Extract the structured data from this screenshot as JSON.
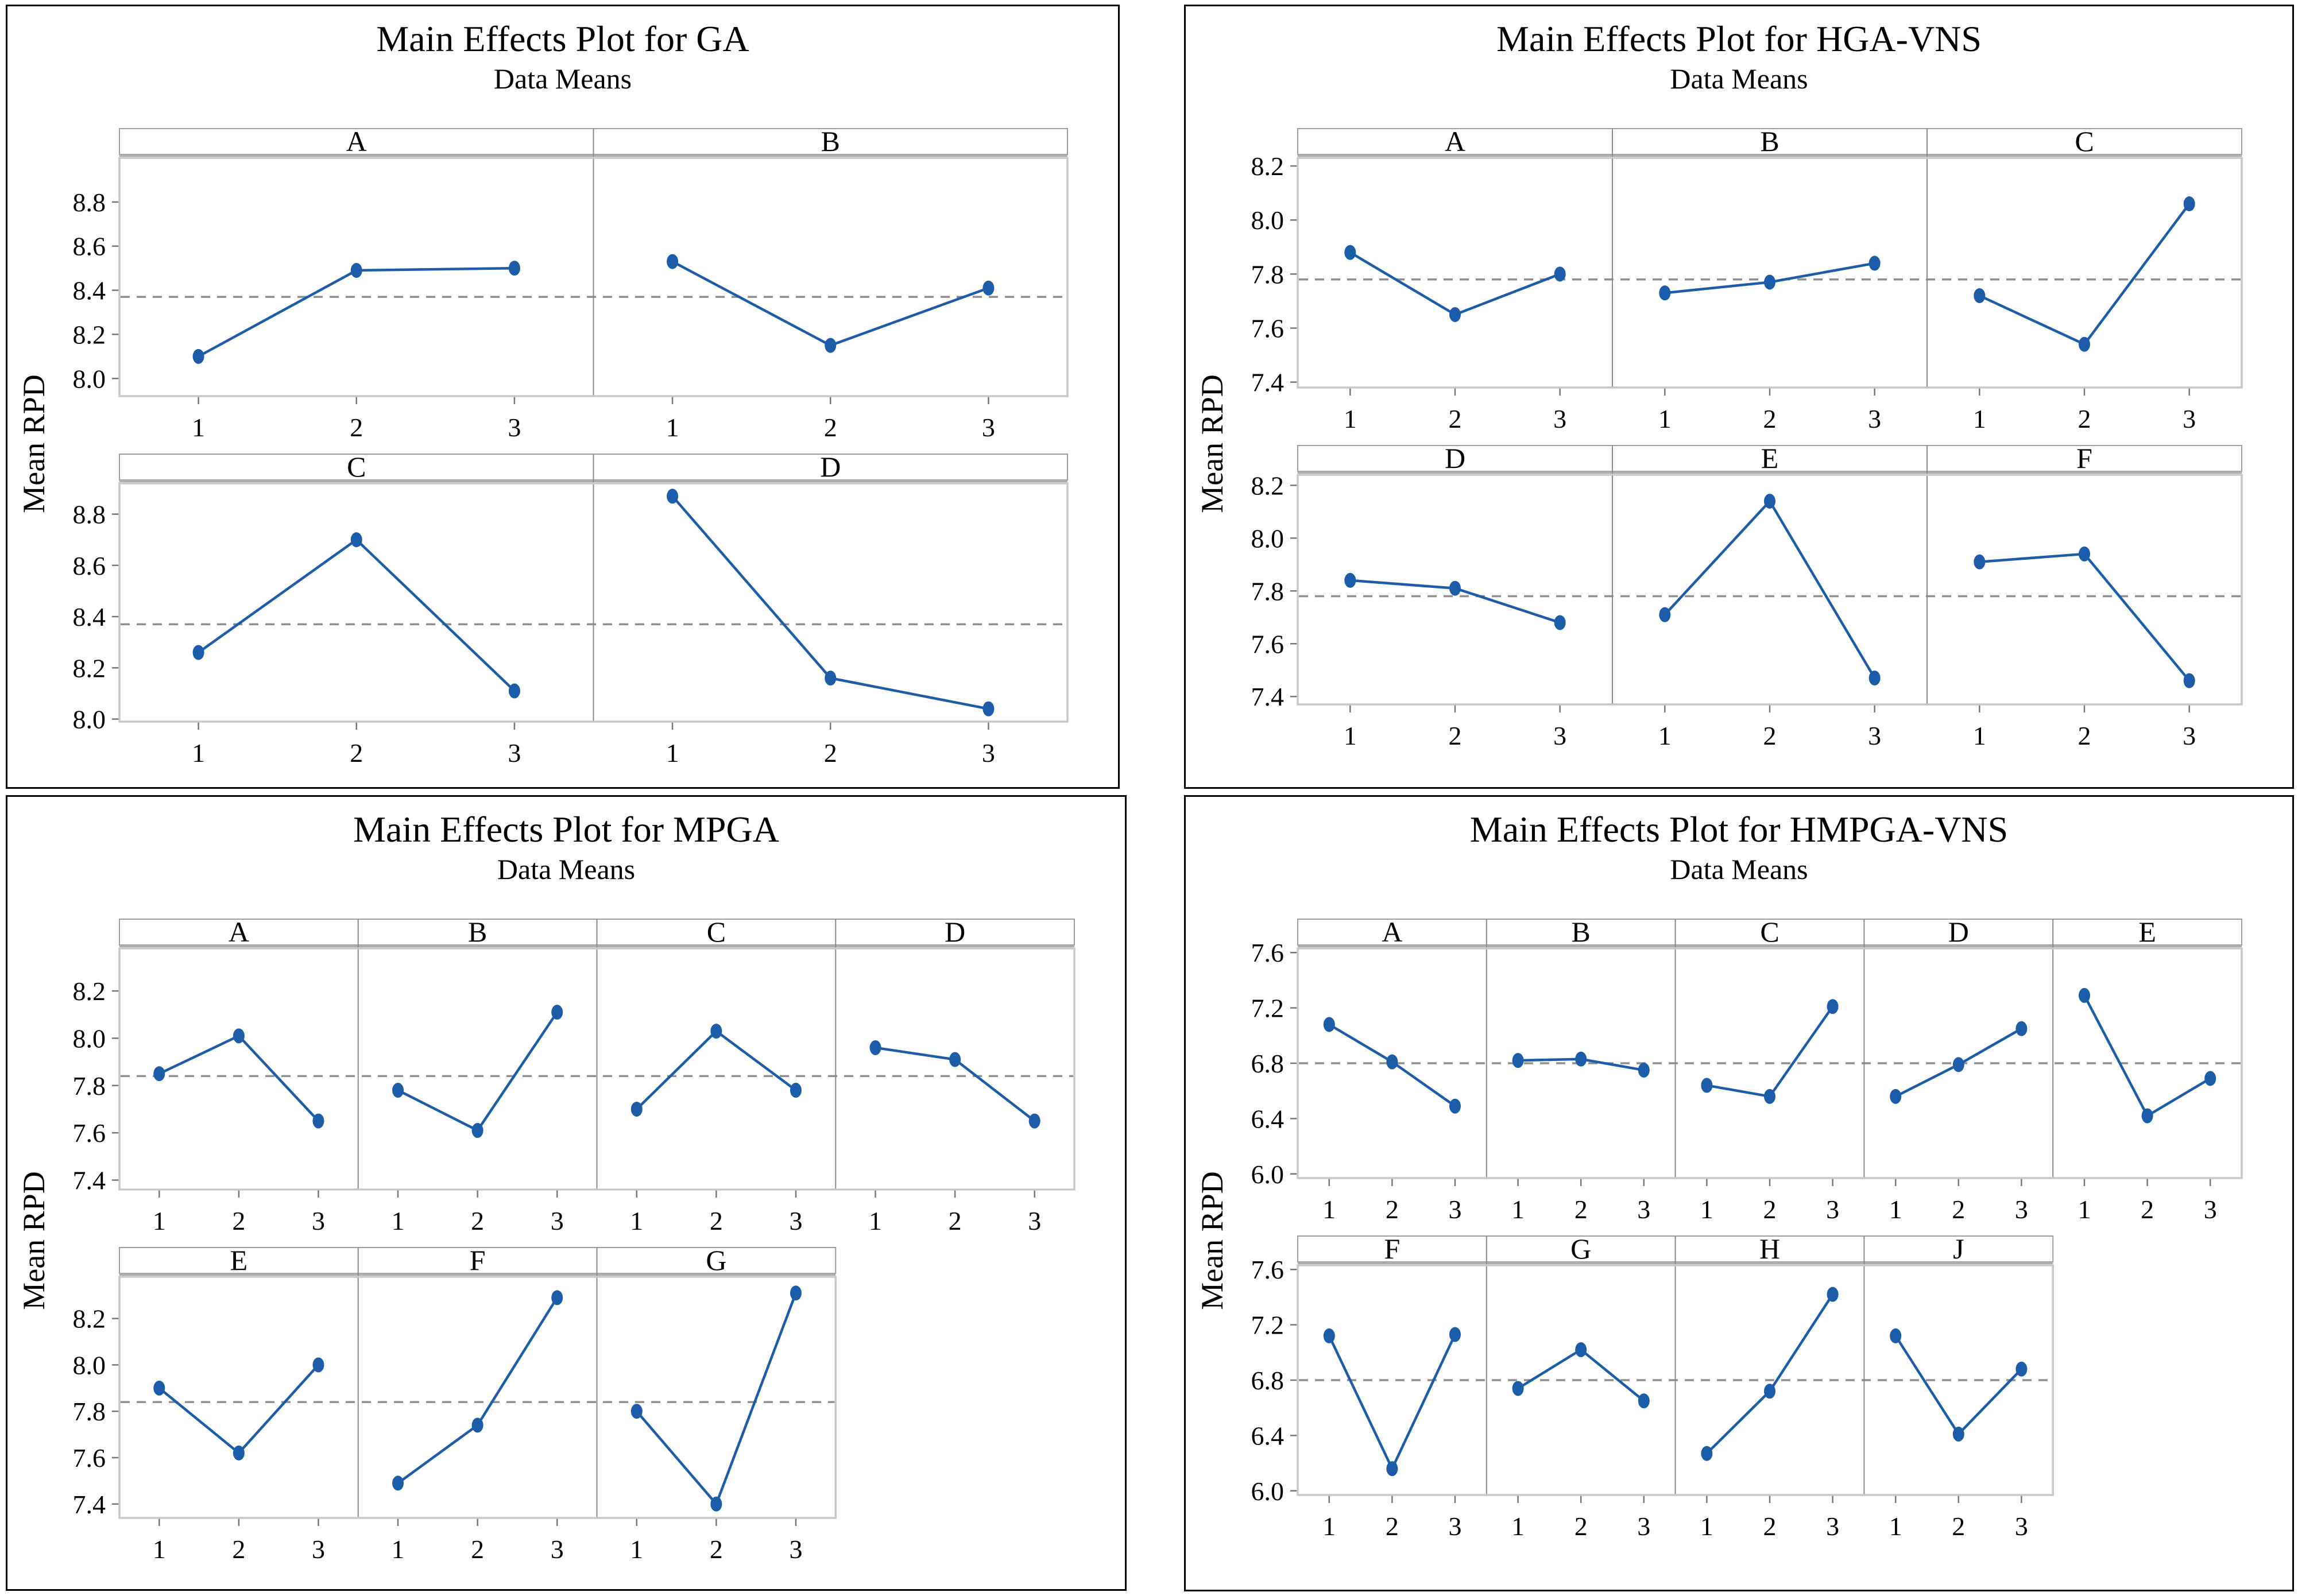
{
  "style": {
    "line_color": "#1d5ca8",
    "marker_color": "#1d5ca8",
    "mean_line_color": "#8f8f8f",
    "frame_color": "#c8c8c8",
    "separator_color": "#8a8a8a"
  },
  "chart_data": [
    {
      "type": "line",
      "title": "Main Effects Plot for GA",
      "subtitle": "Data Means",
      "ylabel": "Mean RPD",
      "x_levels": [
        "1",
        "2",
        "3"
      ],
      "grand_mean": 8.37,
      "rows": [
        {
          "yticks": [
            8.8,
            8.6,
            8.4,
            8.2,
            8.0
          ],
          "ylim": [
            7.92,
            9.0
          ],
          "subpanels": [
            {
              "label": "A",
              "values": [
                8.1,
                8.49,
                8.5
              ]
            },
            {
              "label": "B",
              "values": [
                8.53,
                8.15,
                8.41
              ]
            }
          ]
        },
        {
          "yticks": [
            8.8,
            8.6,
            8.4,
            8.2,
            8.0
          ],
          "ylim": [
            7.99,
            8.92
          ],
          "subpanels": [
            {
              "label": "C",
              "values": [
                8.26,
                8.7,
                8.11
              ]
            },
            {
              "label": "D",
              "values": [
                8.87,
                8.16,
                8.04
              ]
            }
          ]
        }
      ]
    },
    {
      "type": "line",
      "title": "Main Effects Plot for HGA-VNS",
      "subtitle": "Data Means",
      "ylabel": "Mean RPD",
      "x_levels": [
        "1",
        "2",
        "3"
      ],
      "grand_mean": 7.78,
      "rows": [
        {
          "yticks": [
            8.2,
            8.0,
            7.8,
            7.6,
            7.4
          ],
          "ylim": [
            7.38,
            8.23
          ],
          "subpanels": [
            {
              "label": "A",
              "values": [
                7.88,
                7.65,
                7.8
              ]
            },
            {
              "label": "B",
              "values": [
                7.73,
                7.77,
                7.84
              ]
            },
            {
              "label": "C",
              "values": [
                7.72,
                7.54,
                8.06
              ]
            }
          ]
        },
        {
          "yticks": [
            8.2,
            8.0,
            7.8,
            7.6,
            7.4
          ],
          "ylim": [
            7.37,
            8.24
          ],
          "subpanels": [
            {
              "label": "D",
              "values": [
                7.84,
                7.81,
                7.68
              ]
            },
            {
              "label": "E",
              "values": [
                7.71,
                8.14,
                7.47
              ]
            },
            {
              "label": "F",
              "values": [
                7.91,
                7.94,
                7.46
              ]
            }
          ]
        }
      ]
    },
    {
      "type": "line",
      "title": "Main Effects Plot for MPGA",
      "subtitle": "Data Means",
      "ylabel": "Mean RPD",
      "x_levels": [
        "1",
        "2",
        "3"
      ],
      "grand_mean": 7.84,
      "rows": [
        {
          "yticks": [
            8.2,
            8.0,
            7.8,
            7.6,
            7.4
          ],
          "ylim": [
            7.36,
            8.38
          ],
          "subpanels": [
            {
              "label": "A",
              "values": [
                7.85,
                8.01,
                7.65
              ]
            },
            {
              "label": "B",
              "values": [
                7.78,
                7.61,
                8.11
              ]
            },
            {
              "label": "C",
              "values": [
                7.7,
                8.03,
                7.78
              ]
            },
            {
              "label": "D",
              "values": [
                7.96,
                7.91,
                7.65
              ]
            }
          ]
        },
        {
          "yticks": [
            8.2,
            8.0,
            7.8,
            7.6,
            7.4
          ],
          "ylim": [
            7.34,
            8.38
          ],
          "subpanels": [
            {
              "label": "E",
              "values": [
                7.9,
                7.62,
                8.0
              ]
            },
            {
              "label": "F",
              "values": [
                7.49,
                7.74,
                8.29
              ]
            },
            {
              "label": "G",
              "values": [
                7.8,
                7.4,
                8.31
              ]
            }
          ]
        }
      ]
    },
    {
      "type": "line",
      "title": "Main Effects Plot for HMPGA-VNS",
      "subtitle": "Data Means",
      "ylabel": "Mean RPD",
      "x_levels": [
        "1",
        "2",
        "3"
      ],
      "grand_mean": 6.8,
      "rows": [
        {
          "yticks": [
            7.6,
            7.2,
            6.8,
            6.4,
            6.0
          ],
          "ylim": [
            5.97,
            7.63
          ],
          "subpanels": [
            {
              "label": "A",
              "values": [
                7.08,
                6.81,
                6.49
              ]
            },
            {
              "label": "B",
              "values": [
                6.82,
                6.83,
                6.75
              ]
            },
            {
              "label": "C",
              "values": [
                6.64,
                6.56,
                7.21
              ]
            },
            {
              "label": "D",
              "values": [
                6.56,
                6.79,
                7.05
              ]
            },
            {
              "label": "E",
              "values": [
                7.29,
                6.42,
                6.69
              ]
            }
          ]
        },
        {
          "yticks": [
            7.6,
            7.2,
            6.8,
            6.4,
            6.0
          ],
          "ylim": [
            5.97,
            7.63
          ],
          "subpanels": [
            {
              "label": "F",
              "values": [
                7.12,
                6.16,
                7.13
              ]
            },
            {
              "label": "G",
              "values": [
                6.74,
                7.02,
                6.65
              ]
            },
            {
              "label": "H",
              "values": [
                6.27,
                6.72,
                7.42
              ]
            },
            {
              "label": "J",
              "values": [
                7.12,
                6.41,
                6.88
              ]
            }
          ]
        }
      ]
    }
  ]
}
